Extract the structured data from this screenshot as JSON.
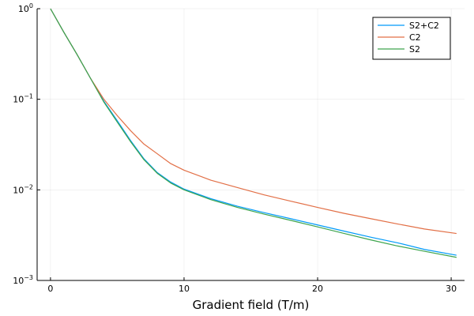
{
  "chart_data": {
    "type": "line",
    "xlabel": "Gradient field (T/m)",
    "ylabel": "",
    "xlim": [
      -1.0,
      31.0
    ],
    "ylim": [
      0.001,
      1.0
    ],
    "yscale": "log",
    "grid": true,
    "legend_position": "top-right",
    "x_ticks": [
      0,
      10,
      20,
      30
    ],
    "x_tick_labels": [
      "0",
      "10",
      "20",
      "30"
    ],
    "y_ticks": [
      {
        "value": 0.001,
        "base": "10",
        "exp": "−3"
      },
      {
        "value": 0.01,
        "base": "10",
        "exp": "−2"
      },
      {
        "value": 0.1,
        "base": "10",
        "exp": "−1"
      },
      {
        "value": 1,
        "base": "10",
        "exp": "0"
      }
    ],
    "x": [
      0,
      1,
      2,
      3,
      4,
      5,
      6,
      7,
      8,
      9,
      10,
      12,
      14,
      16,
      18,
      20,
      22,
      24,
      26,
      28,
      30.4
    ],
    "series": [
      {
        "name": "S2+C2",
        "color": "#009af9",
        "values": [
          1.0,
          0.55,
          0.31,
          0.17,
          0.095,
          0.058,
          0.035,
          0.022,
          0.0155,
          0.0122,
          0.0102,
          0.008,
          0.0066,
          0.0056,
          0.0048,
          0.0041,
          0.0035,
          0.003,
          0.0026,
          0.0022,
          0.0019
        ]
      },
      {
        "name": "C2",
        "color": "#e26f46",
        "values": [
          1.0,
          0.55,
          0.31,
          0.17,
          0.1,
          0.066,
          0.045,
          0.032,
          0.025,
          0.0195,
          0.0165,
          0.0128,
          0.0106,
          0.0088,
          0.0075,
          0.0064,
          0.0055,
          0.0048,
          0.0042,
          0.0037,
          0.0033
        ]
      },
      {
        "name": "S2",
        "color": "#3da44d",
        "values": [
          1.0,
          0.55,
          0.31,
          0.17,
          0.093,
          0.056,
          0.034,
          0.0215,
          0.0152,
          0.0119,
          0.01,
          0.0078,
          0.0064,
          0.0054,
          0.0046,
          0.0039,
          0.0033,
          0.0028,
          0.0024,
          0.0021,
          0.0018
        ]
      }
    ]
  }
}
